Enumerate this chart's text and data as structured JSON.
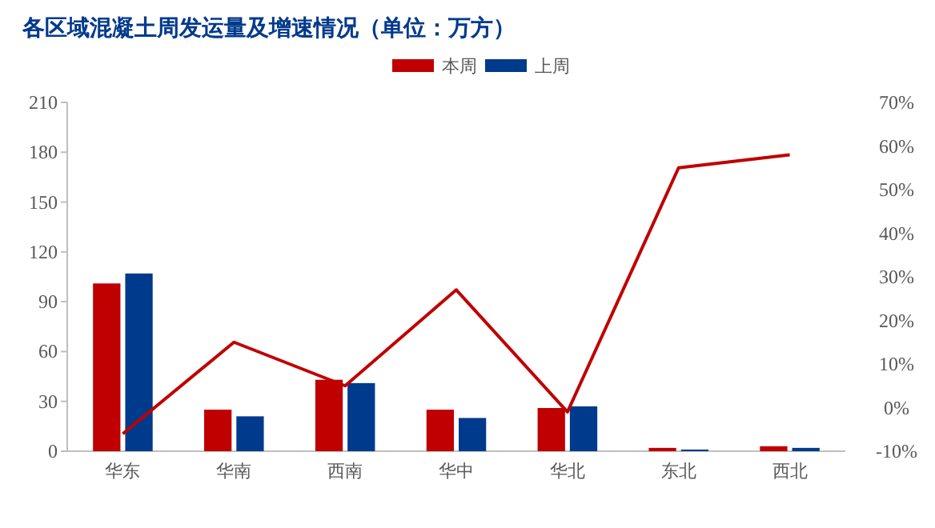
{
  "chart_data": {
    "type": "bar",
    "title": "各区域混凝土周发运量及增速情况（单位：万方）",
    "categories": [
      "华东",
      "华南",
      "西南",
      "华中",
      "华北",
      "东北",
      "西北"
    ],
    "series": [
      {
        "name": "本周",
        "color": "#c00000",
        "values": [
          101,
          25,
          43,
          25,
          26,
          2,
          3
        ]
      },
      {
        "name": "上周",
        "color": "#003a8c",
        "values": [
          107,
          21,
          41,
          20,
          27,
          1,
          2
        ]
      },
      {
        "type": "line",
        "axis": "y2",
        "color": "#c00000",
        "values": [
          -6,
          15,
          5,
          27,
          -1,
          55,
          58
        ]
      }
    ],
    "ylim": [
      0,
      210
    ],
    "yticks": [
      0,
      30,
      60,
      90,
      120,
      150,
      180,
      210
    ],
    "y2lim": [
      -10,
      70
    ],
    "y2ticks": [
      {
        "value": -10,
        "label": "-10%"
      },
      {
        "value": 0,
        "label": "0%"
      },
      {
        "value": 10,
        "label": "10%"
      },
      {
        "value": 20,
        "label": "20%"
      },
      {
        "value": 30,
        "label": "30%"
      },
      {
        "value": 40,
        "label": "40%"
      },
      {
        "value": 50,
        "label": "50%"
      },
      {
        "value": 60,
        "label": "60%"
      },
      {
        "value": 70,
        "label": "70%"
      }
    ],
    "legend": "top",
    "grid": false
  }
}
